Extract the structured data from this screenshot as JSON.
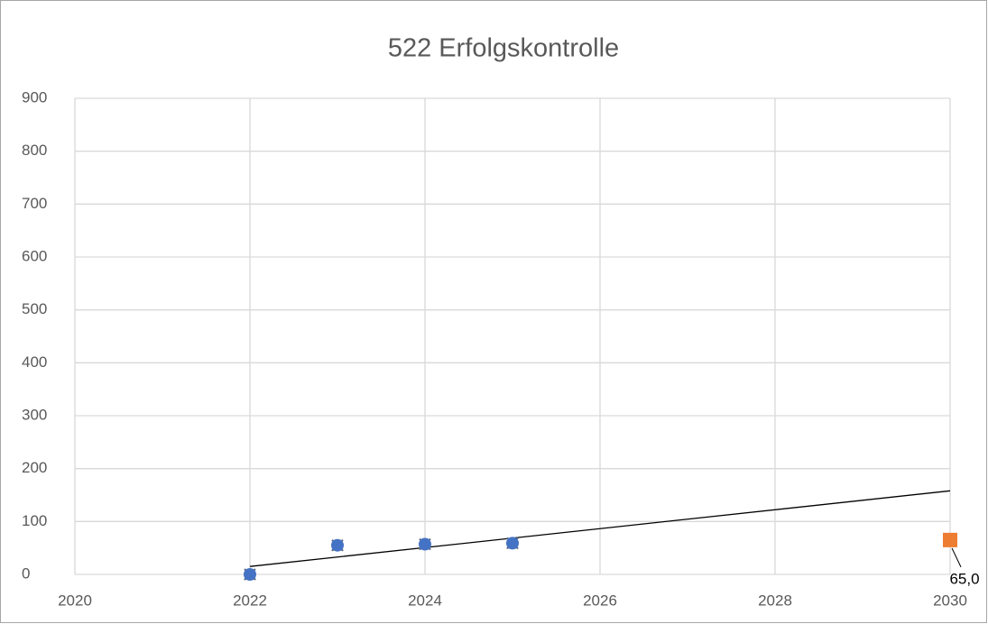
{
  "chart_data": {
    "type": "scatter",
    "title": "522 Erfolgskontrolle",
    "xlim": [
      2020,
      2030
    ],
    "xticks": [
      2020,
      2022,
      2024,
      2026,
      2028,
      2030
    ],
    "ylim": [
      0,
      900
    ],
    "yticks": [
      0,
      100,
      200,
      300,
      400,
      500,
      600,
      700,
      800,
      900
    ],
    "grid": true,
    "series": [
      {
        "marker": "triangle",
        "color": "#a5a5a5",
        "x": [
          2022,
          2023,
          2024,
          2025
        ],
        "values": [
          0,
          55,
          57,
          59
        ]
      },
      {
        "marker": "x",
        "color": "#5a6a85",
        "x": [
          2022,
          2023,
          2024,
          2025
        ],
        "values": [
          0,
          55,
          57,
          59
        ]
      },
      {
        "marker": "circle",
        "color": "#4472c4",
        "x": [
          2022,
          2023,
          2024,
          2025
        ],
        "values": [
          0,
          55,
          57,
          59
        ]
      },
      {
        "marker": "square",
        "color": "#ed7d31",
        "x": [
          2030
        ],
        "values": [
          65
        ],
        "value_labels": [
          "65,0"
        ]
      }
    ],
    "trendline": {
      "color": "#000000",
      "x": [
        2022,
        2030
      ],
      "values": [
        15,
        158
      ]
    }
  }
}
